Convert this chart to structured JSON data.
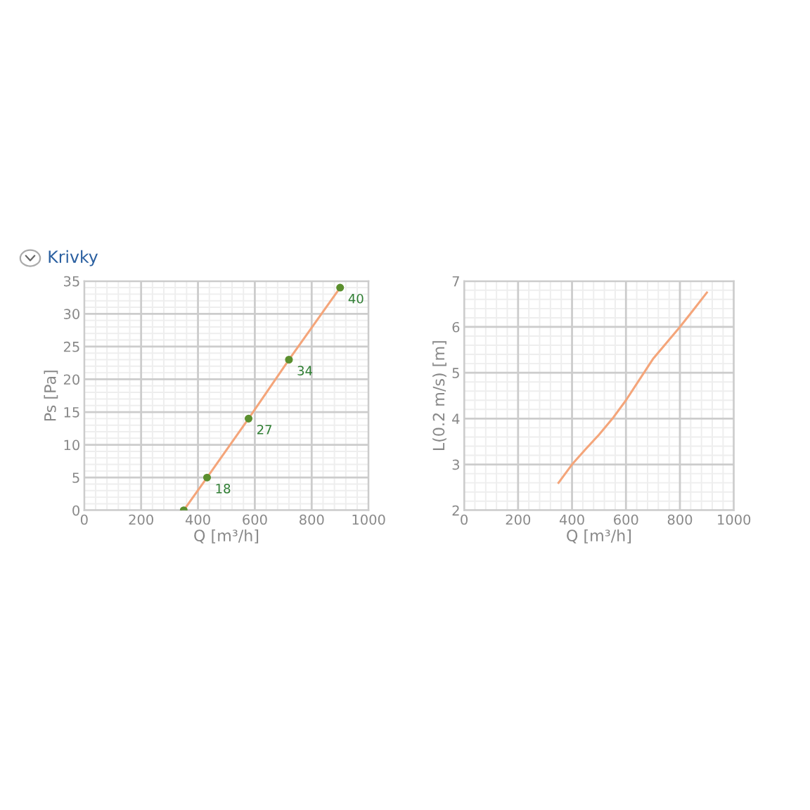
{
  "chart_data": [
    {
      "type": "line",
      "title": "Krivky",
      "xlabel": "Q [m³/h]",
      "ylabel": "Ps [Pa]",
      "xlim": [
        0,
        1000
      ],
      "xticks": [
        0,
        200,
        400,
        600,
        800,
        1000
      ],
      "ylim": [
        0,
        35
      ],
      "yticks": [
        0,
        5,
        10,
        15,
        20,
        25,
        30,
        35
      ],
      "grid": true,
      "series": [
        {
          "color": "#f4a57a",
          "x": [
            350,
            432,
            578,
            720,
            900
          ],
          "values": [
            0,
            5,
            14,
            23,
            34
          ]
        },
        {
          "type": "scatter",
          "color": "#5b8f2e",
          "marker": "circle",
          "x": [
            350,
            432,
            578,
            720,
            900
          ],
          "values": [
            0,
            5,
            14,
            23,
            34
          ]
        }
      ],
      "annotations": [
        {
          "text": "18",
          "x": 432,
          "y": 5
        },
        {
          "text": "27",
          "x": 578,
          "y": 14
        },
        {
          "text": "34",
          "x": 720,
          "y": 23
        },
        {
          "text": "40",
          "x": 900,
          "y": 34
        }
      ]
    },
    {
      "type": "line",
      "xlabel": "Q [m³/h]",
      "ylabel": "L(0.2 m/s) [m]",
      "xlim": [
        0,
        1000
      ],
      "xticks": [
        0,
        200,
        400,
        600,
        800,
        1000
      ],
      "ylim": [
        2,
        7
      ],
      "yticks": [
        2,
        3,
        4,
        5,
        6,
        7
      ],
      "grid": true,
      "series": [
        {
          "color": "#f4a57a",
          "x": [
            350,
            400,
            450,
            500,
            550,
            600,
            650,
            700,
            750,
            800,
            850,
            900
          ],
          "values": [
            2.6,
            3.0,
            3.33,
            3.65,
            4.0,
            4.4,
            4.85,
            5.3,
            5.65,
            6.0,
            6.37,
            6.75
          ]
        }
      ]
    }
  ]
}
